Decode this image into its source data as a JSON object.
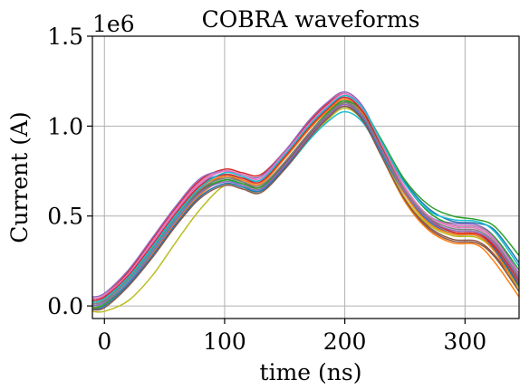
{
  "chart_data": {
    "type": "line",
    "title": "COBRA waveforms",
    "xlabel": "time (ns)",
    "ylabel": "Current (A)",
    "y_offset_label": "1e6",
    "xlim": [
      -10,
      345
    ],
    "ylim": [
      -0.07,
      1.5
    ],
    "xticks": [
      0,
      100,
      200,
      300
    ],
    "xtick_labels": [
      "0",
      "100",
      "200",
      "300"
    ],
    "yticks": [
      0.0,
      0.5,
      1.0,
      1.5
    ],
    "ytick_labels": [
      "0.0",
      "0.5",
      "1.0",
      "1.5"
    ],
    "grid": true,
    "x": [
      -10,
      0,
      20,
      40,
      60,
      80,
      100,
      115,
      130,
      150,
      170,
      185,
      200,
      215,
      230,
      250,
      270,
      290,
      310,
      325,
      345
    ],
    "series": [
      {
        "color": "#1f77b4",
        "values": [
          0.03,
          0.05,
          0.17,
          0.35,
          0.53,
          0.68,
          0.73,
          0.71,
          0.7,
          0.83,
          1.0,
          1.1,
          1.16,
          1.09,
          0.91,
          0.69,
          0.54,
          0.47,
          0.46,
          0.42,
          0.24
        ]
      },
      {
        "color": "#ff7f0e",
        "values": [
          -0.01,
          0.0,
          0.12,
          0.29,
          0.47,
          0.62,
          0.7,
          0.67,
          0.64,
          0.77,
          0.94,
          1.05,
          1.12,
          1.04,
          0.84,
          0.58,
          0.42,
          0.35,
          0.34,
          0.24,
          0.05
        ]
      },
      {
        "color": "#2ca02c",
        "values": [
          0.01,
          0.03,
          0.15,
          0.32,
          0.5,
          0.64,
          0.7,
          0.67,
          0.65,
          0.79,
          0.95,
          1.06,
          1.13,
          1.09,
          0.93,
          0.7,
          0.56,
          0.5,
          0.48,
          0.44,
          0.28
        ]
      },
      {
        "color": "#d62728",
        "values": [
          0.04,
          0.06,
          0.19,
          0.37,
          0.55,
          0.7,
          0.76,
          0.74,
          0.73,
          0.86,
          1.02,
          1.12,
          1.18,
          1.1,
          0.9,
          0.65,
          0.49,
          0.41,
          0.4,
          0.32,
          0.12
        ]
      },
      {
        "color": "#9467bd",
        "values": [
          0.05,
          0.07,
          0.2,
          0.38,
          0.56,
          0.71,
          0.75,
          0.73,
          0.72,
          0.86,
          1.03,
          1.13,
          1.19,
          1.11,
          0.91,
          0.66,
          0.5,
          0.46,
          0.45,
          0.38,
          0.18
        ]
      },
      {
        "color": "#8c564b",
        "values": [
          0.0,
          0.02,
          0.14,
          0.31,
          0.49,
          0.64,
          0.72,
          0.69,
          0.66,
          0.79,
          0.95,
          1.06,
          1.13,
          1.05,
          0.85,
          0.6,
          0.44,
          0.37,
          0.36,
          0.28,
          0.1
        ]
      },
      {
        "color": "#e377c2",
        "values": [
          0.02,
          0.04,
          0.17,
          0.35,
          0.53,
          0.68,
          0.75,
          0.72,
          0.7,
          0.83,
          1.0,
          1.1,
          1.17,
          1.09,
          0.9,
          0.65,
          0.5,
          0.44,
          0.43,
          0.36,
          0.15
        ]
      },
      {
        "color": "#7f7f7f",
        "values": [
          0.02,
          0.04,
          0.16,
          0.33,
          0.51,
          0.66,
          0.72,
          0.7,
          0.68,
          0.82,
          0.98,
          1.08,
          1.14,
          1.07,
          0.88,
          0.64,
          0.48,
          0.42,
          0.41,
          0.33,
          0.13
        ]
      },
      {
        "color": "#bcbd22",
        "values": [
          -0.03,
          -0.03,
          0.03,
          0.17,
          0.36,
          0.54,
          0.67,
          0.66,
          0.63,
          0.76,
          0.92,
          1.03,
          1.1,
          1.03,
          0.85,
          0.6,
          0.45,
          0.39,
          0.38,
          0.3,
          0.1
        ]
      },
      {
        "color": "#17becf",
        "values": [
          0.0,
          0.02,
          0.14,
          0.31,
          0.49,
          0.63,
          0.7,
          0.67,
          0.64,
          0.76,
          0.92,
          1.02,
          1.08,
          1.02,
          0.85,
          0.63,
          0.5,
          0.45,
          0.44,
          0.37,
          0.17
        ]
      },
      {
        "color": "#1f77b4",
        "values": [
          -0.02,
          0.0,
          0.12,
          0.28,
          0.46,
          0.61,
          0.68,
          0.66,
          0.64,
          0.77,
          0.93,
          1.04,
          1.11,
          1.04,
          0.86,
          0.62,
          0.47,
          0.4,
          0.39,
          0.31,
          0.11
        ]
      },
      {
        "color": "#ff7f0e",
        "values": [
          0.01,
          0.03,
          0.15,
          0.33,
          0.51,
          0.66,
          0.72,
          0.7,
          0.68,
          0.82,
          0.98,
          1.08,
          1.15,
          1.07,
          0.88,
          0.62,
          0.46,
          0.4,
          0.39,
          0.3,
          0.08
        ]
      },
      {
        "color": "#2ca02c",
        "values": [
          -0.01,
          0.01,
          0.13,
          0.3,
          0.48,
          0.63,
          0.7,
          0.68,
          0.66,
          0.8,
          0.96,
          1.07,
          1.14,
          1.08,
          0.91,
          0.68,
          0.52,
          0.45,
          0.44,
          0.38,
          0.2
        ]
      },
      {
        "color": "#d62728",
        "values": [
          0.03,
          0.05,
          0.17,
          0.34,
          0.52,
          0.67,
          0.73,
          0.71,
          0.69,
          0.83,
          0.99,
          1.09,
          1.16,
          1.08,
          0.89,
          0.64,
          0.48,
          0.41,
          0.4,
          0.33,
          0.14
        ]
      },
      {
        "color": "#9467bd",
        "values": [
          0.0,
          0.02,
          0.13,
          0.3,
          0.48,
          0.63,
          0.69,
          0.67,
          0.65,
          0.78,
          0.94,
          1.05,
          1.12,
          1.05,
          0.87,
          0.63,
          0.48,
          0.42,
          0.41,
          0.34,
          0.15
        ]
      },
      {
        "color": "#8c564b",
        "values": [
          -0.02,
          -0.01,
          0.11,
          0.27,
          0.45,
          0.6,
          0.67,
          0.65,
          0.63,
          0.76,
          0.93,
          1.04,
          1.11,
          1.03,
          0.84,
          0.59,
          0.43,
          0.36,
          0.35,
          0.27,
          0.08
        ]
      },
      {
        "color": "#e377c2",
        "values": [
          0.04,
          0.06,
          0.18,
          0.36,
          0.54,
          0.69,
          0.75,
          0.73,
          0.71,
          0.85,
          1.01,
          1.11,
          1.18,
          1.1,
          0.91,
          0.66,
          0.5,
          0.45,
          0.44,
          0.37,
          0.17
        ]
      },
      {
        "color": "#7f7f7f",
        "values": [
          0.01,
          0.03,
          0.15,
          0.32,
          0.5,
          0.65,
          0.71,
          0.69,
          0.67,
          0.8,
          0.96,
          1.06,
          1.13,
          1.06,
          0.88,
          0.64,
          0.49,
          0.43,
          0.42,
          0.35,
          0.16
        ]
      },
      {
        "color": "#17becf",
        "values": [
          0.02,
          0.04,
          0.16,
          0.33,
          0.51,
          0.66,
          0.74,
          0.72,
          0.7,
          0.84,
          1.0,
          1.1,
          1.17,
          1.1,
          0.92,
          0.68,
          0.53,
          0.48,
          0.47,
          0.41,
          0.22
        ]
      }
    ]
  }
}
